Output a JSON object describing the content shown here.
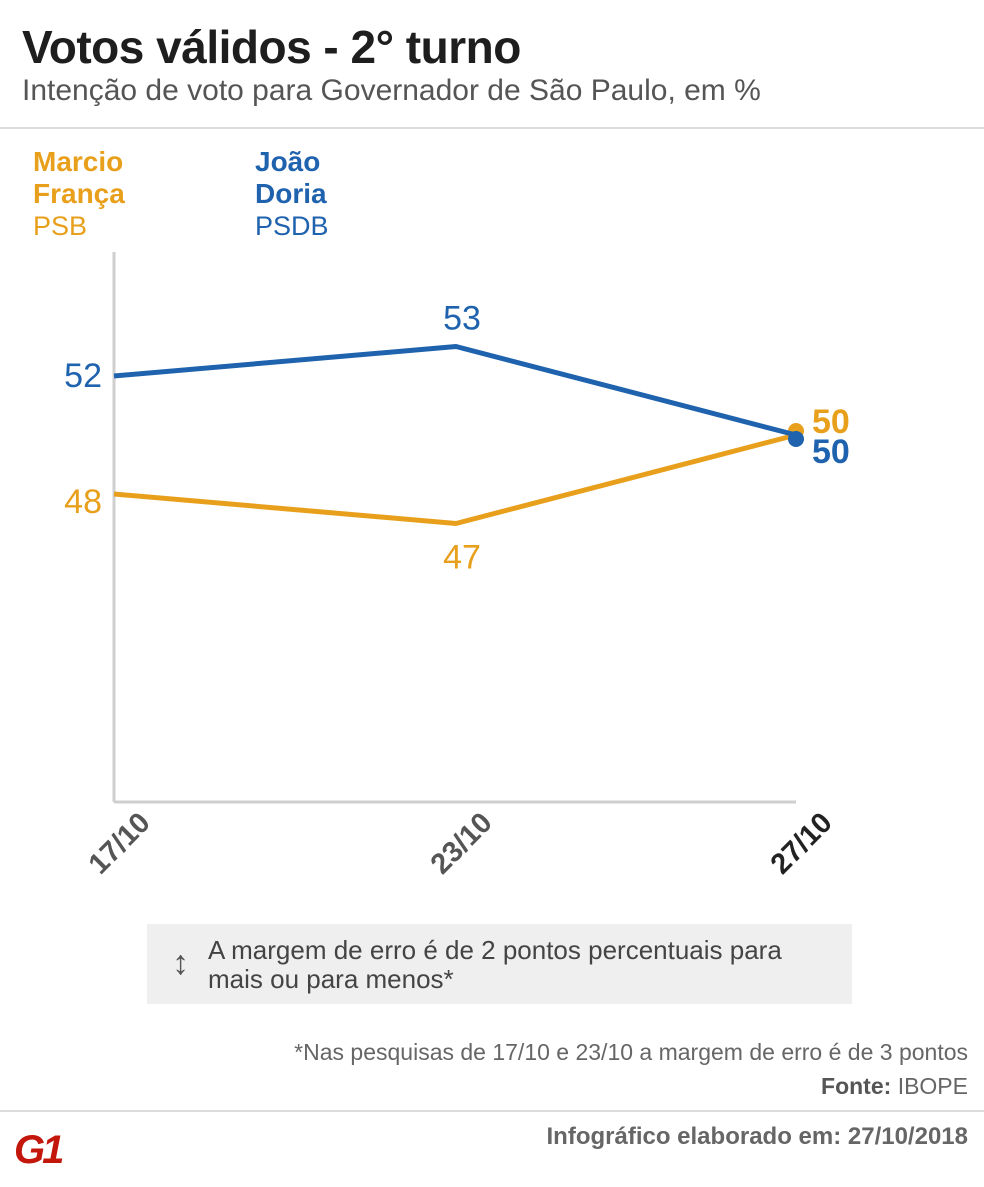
{
  "header": {
    "title": "Votos válidos - 2° turno",
    "subtitle": "Intenção de voto para Governador de São Paulo, em %"
  },
  "legend": {
    "items": [
      {
        "name": "Marcio França",
        "party": "PSB",
        "color": "#e8a01c"
      },
      {
        "name": "João Doria",
        "party": "PSDB",
        "color": "#1f62ad"
      }
    ]
  },
  "chart_data": {
    "type": "line",
    "x": [
      "17/10",
      "23/10",
      "27/10"
    ],
    "series": [
      {
        "name": "Marcio França",
        "values": [
          48,
          47,
          50
        ],
        "color": "#e8a01c"
      },
      {
        "name": "João Doria",
        "values": [
          52,
          53,
          50
        ],
        "color": "#1f62ad"
      }
    ],
    "title": "Votos válidos - 2° turno",
    "subtitle": "Intenção de voto para Governador de São Paulo, em %",
    "xlabel": "",
    "ylabel": "",
    "grid": false,
    "legend_position": "top-left"
  },
  "note": {
    "icon": "up-down-arrow-icon",
    "text": "A margem de erro é de 2 pontos percentuais para mais ou para menos*"
  },
  "footer": {
    "footnote": "*Nas pesquisas de 17/10 e 23/10 a margem de erro é de 3 pontos",
    "source_label": "Fonte:",
    "source_value": "IBOPE",
    "credit": "Infográfico elaborado em: 27/10/2018",
    "logo_text": "G1",
    "logo_color": "#c4170c"
  }
}
